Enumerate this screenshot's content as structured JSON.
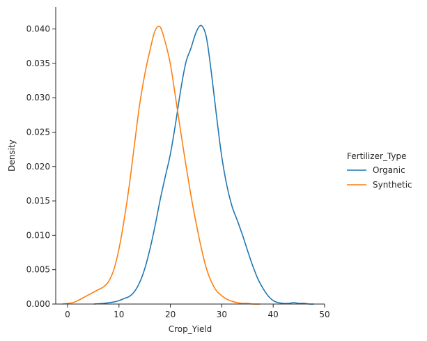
{
  "chart_data": {
    "type": "line",
    "title": "",
    "xlabel": "Crop_Yield",
    "ylabel": "Density",
    "xlim": [
      -2.3,
      50
    ],
    "ylim": [
      0,
      0.0432
    ],
    "xticks": [
      0,
      10,
      20,
      30,
      40,
      50
    ],
    "yticks": [
      0.0,
      0.005,
      0.01,
      0.015,
      0.02,
      0.025,
      0.03,
      0.035,
      0.04
    ],
    "ytick_labels": [
      "0.000",
      "0.005",
      "0.010",
      "0.015",
      "0.020",
      "0.025",
      "0.030",
      "0.035",
      "0.040"
    ],
    "grid": false,
    "legend": {
      "title": "Fertilizer_Type",
      "placement": "outside-right"
    },
    "series": [
      {
        "name": "Organic",
        "color": "#1f77b4",
        "x": [
          5.2,
          7,
          9,
          10,
          11,
          12,
          13,
          14,
          15,
          16,
          17,
          18,
          19,
          20,
          21,
          22,
          23,
          24,
          25,
          26,
          27,
          28,
          29,
          30,
          31,
          32,
          33,
          34,
          35,
          36,
          37,
          38,
          39,
          40,
          41,
          42,
          43,
          44,
          45,
          46,
          47,
          47.9
        ],
        "y": [
          0.0,
          0.0001,
          0.0003,
          0.0005,
          0.0008,
          0.0011,
          0.0018,
          0.0031,
          0.0051,
          0.0079,
          0.0113,
          0.0151,
          0.0185,
          0.0218,
          0.0262,
          0.0311,
          0.0351,
          0.0372,
          0.0395,
          0.0405,
          0.0388,
          0.0335,
          0.0272,
          0.0214,
          0.0172,
          0.0142,
          0.0122,
          0.0101,
          0.0078,
          0.0056,
          0.0037,
          0.0023,
          0.0012,
          0.0005,
          0.0002,
          0.0001,
          0.0001,
          0.0002,
          0.0001,
          0.0001,
          0.0,
          0.0
        ]
      },
      {
        "name": "Synthetic",
        "color": "#ff7f0e",
        "x": [
          -1.0,
          0,
          1,
          2,
          3,
          4,
          5,
          6,
          7,
          8,
          9,
          10,
          11,
          12,
          13,
          14,
          15,
          16,
          17,
          18,
          19,
          20,
          21,
          22,
          23,
          24,
          25,
          26,
          27,
          28,
          29,
          30,
          31,
          32,
          33,
          34,
          35,
          36,
          37.4
        ],
        "y": [
          0.0,
          0.0001,
          0.0002,
          0.0005,
          0.0009,
          0.0013,
          0.0017,
          0.0021,
          0.0025,
          0.0033,
          0.005,
          0.008,
          0.0122,
          0.0172,
          0.0231,
          0.0289,
          0.0333,
          0.0368,
          0.0397,
          0.0403,
          0.0381,
          0.0349,
          0.0301,
          0.0251,
          0.0203,
          0.0158,
          0.0118,
          0.0082,
          0.0052,
          0.0032,
          0.0019,
          0.0012,
          0.0007,
          0.0004,
          0.0002,
          0.0001,
          0.0001,
          0.0,
          0.0
        ]
      }
    ]
  }
}
